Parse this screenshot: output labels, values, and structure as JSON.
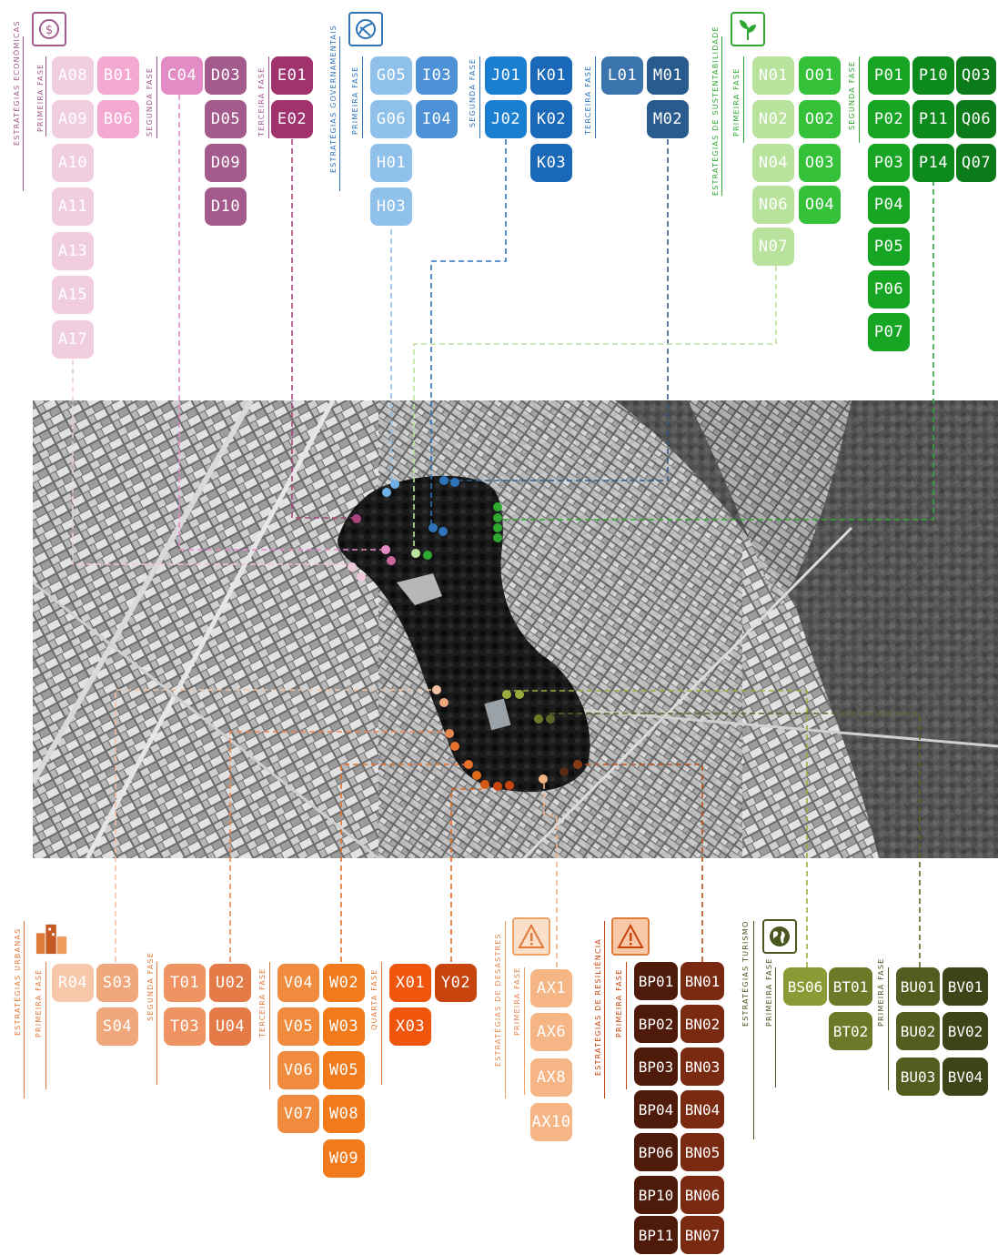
{
  "top_groups": {
    "economicas": {
      "title": "ESTRATÉGIAS ECONÔMICAS",
      "icon": "dollar-icon",
      "color": "#a35b8e",
      "phases": [
        {
          "label": "PRIMEIRA FASE",
          "codes": [
            "A08",
            "A09",
            "A10",
            "A11",
            "A13",
            "A15",
            "A17",
            "B01",
            "B06"
          ]
        },
        {
          "label": "SEGUNDA FASE",
          "codes": [
            "C04",
            "D03",
            "D05",
            "D09",
            "D10"
          ]
        },
        {
          "label": "TERCEIRA FASE",
          "codes": [
            "E01",
            "E02"
          ]
        }
      ]
    },
    "governamentais": {
      "title": "ESTRATÉGIAS GOVERNAMENTAIS",
      "icon": "globe-icon",
      "color": "#2f74b8",
      "phases": [
        {
          "label": "PRIMEIRA FASE",
          "codes": [
            "G05",
            "G06",
            "H01",
            "H03",
            "I03",
            "I04"
          ]
        },
        {
          "label": "SEGUNDA FASE",
          "codes": [
            "J01",
            "J02",
            "K01",
            "K02",
            "K03"
          ]
        },
        {
          "label": "TERCEIRA FASE",
          "codes": [
            "L01",
            "M01",
            "M02"
          ]
        }
      ]
    },
    "sustentabilidade": {
      "title": "ESTRATÉGIAS DE SUSTENTABILIDADE",
      "icon": "plant-icon",
      "color": "#2fa832",
      "phases": [
        {
          "label": "PRIMEIRA FASE",
          "codes": [
            "N01",
            "N02",
            "N04",
            "N06",
            "N07",
            "O01",
            "O02",
            "O03",
            "O04"
          ]
        },
        {
          "label": "SEGUNDA FASE",
          "codes": [
            "P01",
            "P02",
            "P03",
            "P04",
            "P05",
            "P06",
            "P07",
            "P10",
            "P11",
            "P14",
            "Q03",
            "Q06",
            "Q07"
          ]
        }
      ]
    }
  },
  "bottom_groups": {
    "urbanas": {
      "title": "ESTRATÉGIAS URBANAS",
      "icon": "buildings-icon",
      "color": "#e07a3b",
      "phases": [
        {
          "label": "PRIMEIRA FASE",
          "codes": [
            "R04",
            "S03",
            "S04"
          ]
        },
        {
          "label": "SEGUNDA FASE",
          "codes": [
            "T01",
            "T03",
            "U02",
            "U04"
          ]
        },
        {
          "label": "TERCEIRA FASE",
          "codes": [
            "V04",
            "V05",
            "V06",
            "V07",
            "W02",
            "W03",
            "W05",
            "W08",
            "W09"
          ]
        },
        {
          "label": "QUARTA FASE",
          "codes": [
            "X01",
            "X03",
            "Y02"
          ]
        }
      ]
    },
    "desastres": {
      "title": "ESTRATÉGIAS DE DESASTRES",
      "icon": "warning-icon",
      "color": "#f0a368",
      "phases": [
        {
          "label": "PRIMEIRA FASE",
          "codes": [
            "AX1",
            "AX6",
            "AX8",
            "AX10"
          ]
        }
      ]
    },
    "resiliencia": {
      "title": "ESTRATÉGIAS DE RESILIÊNCIA",
      "icon": "warning-icon",
      "color": "#7a2a10",
      "phases": [
        {
          "label": "PRIMEIRA FASE",
          "codes": [
            "BP01",
            "BP02",
            "BP03",
            "BP04",
            "BP06",
            "BP10",
            "BP11",
            "BN01",
            "BN02",
            "BN03",
            "BN04",
            "BN05",
            "BN06",
            "BN07"
          ]
        }
      ]
    },
    "turismo": {
      "title": "ESTRATÉGIAS TURISMO",
      "icon": "earth-icon",
      "color": "#6b7a28",
      "phases": [
        {
          "label": "PRIMEIRA FASE",
          "codes": [
            "BS06",
            "BT01",
            "BT02"
          ]
        },
        {
          "label": "PRIMEIRA FASE",
          "codes": [
            "BU01",
            "BU02",
            "BU03",
            "BV01",
            "BV02",
            "BV04"
          ]
        }
      ]
    }
  },
  "map": {
    "description_icon": "aerial-map-icon"
  }
}
